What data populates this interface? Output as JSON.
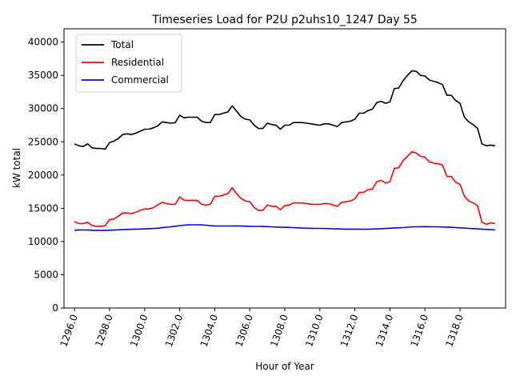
{
  "chart_data": {
    "type": "line",
    "title": "Timeseries Load for P2U p2uhs10_1247  Day 55",
    "xlabel": "Hour of Year",
    "ylabel": "kW total",
    "xlim": [
      1295.4,
      1320.6
    ],
    "ylim": [
      0,
      42000
    ],
    "x_ticks": [
      1296,
      1298,
      1300,
      1302,
      1304,
      1306,
      1308,
      1310,
      1312,
      1314,
      1316,
      1318
    ],
    "x_tick_labels": [
      "1296.0",
      "1298.0",
      "1300.0",
      "1302.0",
      "1304.0",
      "1306.0",
      "1308.0",
      "1310.0",
      "1312.0",
      "1314.0",
      "1316.0",
      "1318.0"
    ],
    "y_ticks": [
      0,
      5000,
      10000,
      15000,
      20000,
      25000,
      30000,
      35000,
      40000
    ],
    "y_tick_labels": [
      "0",
      "5000",
      "10000",
      "15000",
      "20000",
      "25000",
      "30000",
      "35000",
      "40000"
    ],
    "legend_position": "top-left",
    "x_start": 1296.0,
    "x_step": 0.25,
    "series": [
      {
        "name": "Total",
        "color": "#000000",
        "values": [
          24700,
          24400,
          24300,
          24700,
          24100,
          24000,
          24000,
          23900,
          24900,
          25100,
          25500,
          26100,
          26200,
          26100,
          26300,
          26600,
          26900,
          26900,
          27100,
          27400,
          28000,
          27900,
          27800,
          27900,
          29000,
          28600,
          28700,
          28700,
          28700,
          28100,
          27900,
          27900,
          29100,
          29100,
          29300,
          29500,
          30400,
          29600,
          28800,
          28400,
          28300,
          27500,
          27000,
          27000,
          27800,
          27600,
          27500,
          26900,
          27500,
          27500,
          27900,
          27900,
          27900,
          27800,
          27700,
          27600,
          27500,
          27700,
          27700,
          27500,
          27300,
          27900,
          28000,
          28100,
          28400,
          29300,
          29300,
          29700,
          29900,
          30900,
          31100,
          30800,
          31000,
          33000,
          33100,
          34200,
          35000,
          35700,
          35600,
          35000,
          34900,
          34300,
          34100,
          33900,
          33600,
          32000,
          32000,
          31200,
          30800,
          28700,
          28000,
          27600,
          27000,
          24700,
          24400,
          24500,
          24400
        ]
      },
      {
        "name": "Residential",
        "color": "#ff0000",
        "values": [
          13000,
          12700,
          12700,
          12900,
          12400,
          12300,
          12300,
          12400,
          13300,
          13400,
          13800,
          14300,
          14300,
          14200,
          14400,
          14700,
          14900,
          14900,
          15100,
          15500,
          15900,
          15700,
          15600,
          15600,
          16700,
          16200,
          16200,
          16200,
          16200,
          15600,
          15500,
          15600,
          16800,
          16800,
          17000,
          17200,
          18100,
          17200,
          16500,
          16100,
          16000,
          15100,
          14700,
          14700,
          15500,
          15300,
          15300,
          14800,
          15400,
          15500,
          15800,
          15800,
          15800,
          15700,
          15600,
          15600,
          15600,
          15700,
          15700,
          15500,
          15300,
          15900,
          16000,
          16100,
          16400,
          17400,
          17400,
          17800,
          17900,
          19000,
          19200,
          18800,
          19000,
          21000,
          21100,
          22200,
          22800,
          23500,
          23300,
          22800,
          22700,
          22000,
          21800,
          21700,
          21500,
          19800,
          19800,
          18900,
          18600,
          16800,
          16100,
          15800,
          15400,
          12900,
          12600,
          12800,
          12700
        ]
      },
      {
        "name": "Commercial",
        "color": "#0000ff",
        "values": [
          11700,
          11750,
          11730,
          11720,
          11700,
          11680,
          11680,
          11680,
          11700,
          11720,
          11760,
          11800,
          11820,
          11840,
          11860,
          11880,
          11900,
          11930,
          11960,
          12000,
          12080,
          12150,
          12220,
          12300,
          12400,
          12450,
          12500,
          12520,
          12520,
          12500,
          12450,
          12380,
          12350,
          12340,
          12330,
          12330,
          12340,
          12350,
          12330,
          12310,
          12290,
          12280,
          12270,
          12260,
          12240,
          12210,
          12180,
          12160,
          12140,
          12120,
          12100,
          12060,
          12020,
          12000,
          11990,
          11980,
          11970,
          11960,
          11940,
          11920,
          11900,
          11880,
          11870,
          11870,
          11870,
          11860,
          11850,
          11860,
          11880,
          11900,
          11930,
          11960,
          12000,
          12050,
          12060,
          12100,
          12150,
          12200,
          12220,
          12230,
          12240,
          12230,
          12220,
          12210,
          12190,
          12170,
          12140,
          12100,
          12060,
          12020,
          11980,
          11940,
          11900,
          11860,
          11820,
          11780,
          11730
        ]
      }
    ]
  }
}
